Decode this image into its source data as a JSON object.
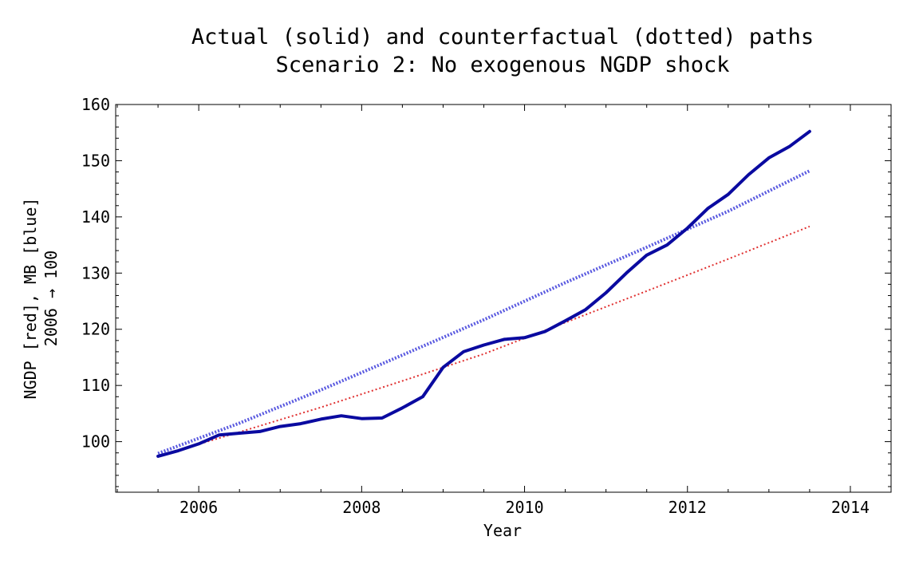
{
  "chart_data": {
    "type": "line",
    "title": "Actual (solid) and counterfactual (dotted) paths",
    "subtitle": "Scenario 2: No exogenous NGDP shock",
    "xlabel": "Year",
    "ylabel_line1": "NGDP [red], MB [blue]",
    "ylabel_line2": "2006 → 100",
    "xlim": [
      2004.98,
      2014.5
    ],
    "ylim": [
      91,
      160
    ],
    "x_ticks": [
      2006,
      2008,
      2010,
      2012,
      2014
    ],
    "y_ticks": [
      100,
      110,
      120,
      130,
      140,
      150,
      160
    ],
    "x_tick_labels": [
      "2006",
      "2008",
      "2010",
      "2012",
      "2014"
    ],
    "y_tick_labels": [
      "100",
      "110",
      "120",
      "130",
      "140",
      "150",
      "160"
    ],
    "grid": false,
    "series": [
      {
        "style": "solid",
        "color": "#0a0aa0",
        "points": [
          [
            2005.5,
            97.4
          ],
          [
            2005.75,
            98.4
          ],
          [
            2006.0,
            99.6
          ],
          [
            2006.25,
            101.2
          ],
          [
            2006.5,
            101.5
          ],
          [
            2006.75,
            101.8
          ],
          [
            2007.0,
            102.7
          ],
          [
            2007.25,
            103.2
          ],
          [
            2007.5,
            104.0
          ],
          [
            2007.75,
            104.6
          ],
          [
            2008.0,
            104.1
          ],
          [
            2008.25,
            104.2
          ],
          [
            2008.5,
            106.0
          ],
          [
            2008.75,
            108.0
          ],
          [
            2009.0,
            113.2
          ],
          [
            2009.25,
            116.0
          ],
          [
            2009.5,
            117.2
          ],
          [
            2009.75,
            118.2
          ],
          [
            2010.0,
            118.5
          ],
          [
            2010.25,
            119.6
          ],
          [
            2010.5,
            121.5
          ],
          [
            2010.75,
            123.5
          ],
          [
            2011.0,
            126.5
          ],
          [
            2011.25,
            130.0
          ],
          [
            2011.5,
            133.2
          ],
          [
            2011.75,
            135.0
          ],
          [
            2012.0,
            138.0
          ],
          [
            2012.25,
            141.5
          ],
          [
            2012.5,
            144.0
          ],
          [
            2012.75,
            147.5
          ],
          [
            2013.0,
            150.5
          ],
          [
            2013.25,
            152.5
          ],
          [
            2013.5,
            155.2
          ]
        ]
      },
      {
        "style": "dotted",
        "color": "#e03030",
        "points": [
          [
            2005.5,
            97.4
          ],
          [
            2006.5,
            101.7
          ],
          [
            2007.5,
            106.1
          ],
          [
            2008.5,
            110.8
          ],
          [
            2009.5,
            115.6
          ],
          [
            2010.5,
            121.2
          ],
          [
            2011.5,
            126.8
          ],
          [
            2012.5,
            132.5
          ],
          [
            2013.5,
            138.3
          ]
        ]
      },
      {
        "style": "dotted-thick",
        "color": "#5a5ae0",
        "points": [
          [
            2005.5,
            97.9
          ],
          [
            2006.5,
            103.3
          ],
          [
            2007.5,
            109.2
          ],
          [
            2008.5,
            115.4
          ],
          [
            2009.5,
            121.7
          ],
          [
            2010.5,
            128.3
          ],
          [
            2011.5,
            134.6
          ],
          [
            2012.5,
            141.0
          ],
          [
            2013.5,
            148.2
          ]
        ]
      }
    ]
  }
}
